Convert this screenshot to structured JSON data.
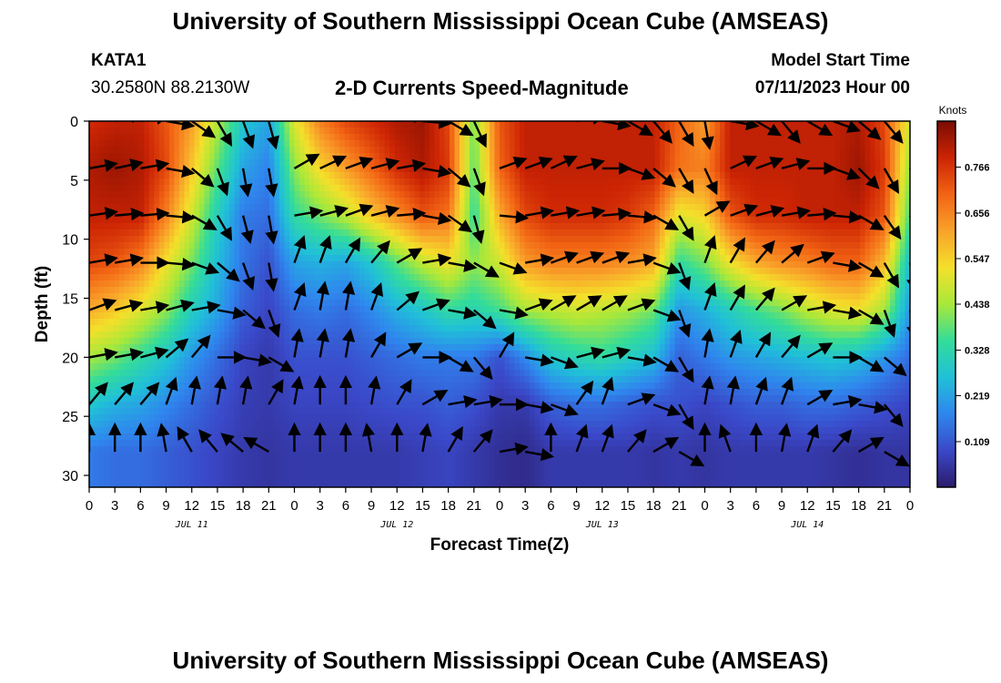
{
  "header": {
    "title": "University of Southern Mississippi Ocean Cube (AMSEAS)",
    "station_id": "KATA1",
    "station_coords": "30.2580N  88.2130W",
    "chart_title": "2-D Currents Speed-Magnitude",
    "model_start_label": "Model Start Time",
    "model_start_value": "07/11/2023 Hour 00"
  },
  "footer": {
    "title": "University of Southern Mississippi Ocean Cube (AMSEAS)"
  },
  "chart_data": {
    "type": "heatmap",
    "xlabel": "Forecast Time(Z)",
    "ylabel": "Depth (ft)",
    "x_tick_labels": [
      "0",
      "3",
      "6",
      "9",
      "12",
      "15",
      "18",
      "21",
      "0",
      "3",
      "6",
      "9",
      "12",
      "15",
      "18",
      "21",
      "0",
      "3",
      "6",
      "9",
      "12",
      "15",
      "18",
      "21",
      "0",
      "3",
      "6",
      "9",
      "12",
      "15",
      "18",
      "21",
      "0"
    ],
    "day_labels": [
      {
        "label": "JUL 11",
        "hour": 12
      },
      {
        "label": "JUL 12",
        "hour": 36
      },
      {
        "label": "JUL 13",
        "hour": 60
      },
      {
        "label": "JUL 14",
        "hour": 84
      }
    ],
    "y_ticks": [
      0,
      5,
      10,
      15,
      20,
      25,
      30
    ],
    "xlim": [
      0,
      96
    ],
    "ylim": [
      31,
      0
    ],
    "colorbar": {
      "units": "Knots",
      "ticks": [
        "0.109",
        "0.219",
        "0.328",
        "0.438",
        "0.547",
        "0.656",
        "0.766"
      ],
      "tick_values": [
        0.109,
        0.219,
        0.328,
        0.438,
        0.547,
        0.656,
        0.766
      ],
      "range": [
        0,
        0.876
      ],
      "colors": [
        "#2b1b6b",
        "#3a48c8",
        "#2f86ee",
        "#20c0d8",
        "#33dc9a",
        "#a8e83a",
        "#f4e02a",
        "#f9a22a",
        "#f26414",
        "#cc2404",
        "#7a0c02"
      ]
    },
    "depths": [
      0,
      4,
      8,
      12,
      16,
      20,
      24,
      28
    ],
    "times": [
      0,
      3,
      6,
      9,
      12,
      15,
      18,
      21,
      24,
      27,
      30,
      33,
      36,
      39,
      42,
      45,
      48,
      51,
      54,
      57,
      60,
      63,
      66,
      69,
      72,
      75,
      78,
      81,
      84,
      87,
      90,
      93,
      96
    ],
    "speed": [
      [
        0.78,
        0.8,
        0.8,
        0.72,
        0.62,
        0.45,
        0.28,
        0.22,
        0.5,
        0.66,
        0.74,
        0.78,
        0.82,
        0.84,
        0.74,
        0.4,
        0.72,
        0.8,
        0.8,
        0.8,
        0.8,
        0.8,
        0.8,
        0.7,
        0.62,
        0.8,
        0.8,
        0.8,
        0.8,
        0.8,
        0.82,
        0.74,
        0.48
      ],
      [
        0.82,
        0.84,
        0.82,
        0.74,
        0.56,
        0.38,
        0.22,
        0.17,
        0.42,
        0.54,
        0.62,
        0.7,
        0.78,
        0.82,
        0.76,
        0.38,
        0.7,
        0.8,
        0.8,
        0.8,
        0.8,
        0.8,
        0.8,
        0.68,
        0.66,
        0.8,
        0.8,
        0.8,
        0.8,
        0.8,
        0.84,
        0.76,
        0.42
      ],
      [
        0.8,
        0.8,
        0.8,
        0.66,
        0.48,
        0.3,
        0.16,
        0.14,
        0.34,
        0.4,
        0.46,
        0.56,
        0.64,
        0.72,
        0.68,
        0.34,
        0.6,
        0.74,
        0.78,
        0.78,
        0.78,
        0.76,
        0.7,
        0.5,
        0.54,
        0.72,
        0.78,
        0.78,
        0.8,
        0.8,
        0.8,
        0.72,
        0.36
      ],
      [
        0.74,
        0.72,
        0.66,
        0.52,
        0.4,
        0.26,
        0.15,
        0.1,
        0.22,
        0.24,
        0.22,
        0.28,
        0.38,
        0.46,
        0.52,
        0.42,
        0.48,
        0.62,
        0.66,
        0.66,
        0.66,
        0.64,
        0.6,
        0.34,
        0.4,
        0.52,
        0.6,
        0.64,
        0.66,
        0.7,
        0.7,
        0.58,
        0.26
      ],
      [
        0.6,
        0.56,
        0.5,
        0.42,
        0.3,
        0.22,
        0.12,
        0.08,
        0.14,
        0.16,
        0.14,
        0.18,
        0.24,
        0.28,
        0.34,
        0.32,
        0.36,
        0.44,
        0.46,
        0.48,
        0.46,
        0.44,
        0.4,
        0.2,
        0.24,
        0.3,
        0.36,
        0.4,
        0.46,
        0.5,
        0.52,
        0.44,
        0.2
      ],
      [
        0.44,
        0.4,
        0.34,
        0.28,
        0.2,
        0.14,
        0.08,
        0.06,
        0.1,
        0.1,
        0.1,
        0.12,
        0.14,
        0.16,
        0.16,
        0.16,
        0.1,
        0.18,
        0.28,
        0.32,
        0.34,
        0.3,
        0.26,
        0.12,
        0.16,
        0.2,
        0.22,
        0.24,
        0.26,
        0.28,
        0.26,
        0.2,
        0.14
      ],
      [
        0.28,
        0.24,
        0.22,
        0.18,
        0.14,
        0.1,
        0.07,
        0.06,
        0.08,
        0.08,
        0.08,
        0.09,
        0.1,
        0.1,
        0.12,
        0.1,
        0.06,
        0.06,
        0.12,
        0.14,
        0.14,
        0.12,
        0.1,
        0.1,
        0.08,
        0.1,
        0.12,
        0.12,
        0.14,
        0.14,
        0.12,
        0.1,
        0.08
      ],
      [
        0.16,
        0.14,
        0.14,
        0.12,
        0.1,
        0.08,
        0.06,
        0.05,
        0.06,
        0.06,
        0.06,
        0.06,
        0.06,
        0.07,
        0.08,
        0.06,
        0.04,
        0.03,
        0.06,
        0.06,
        0.06,
        0.06,
        0.05,
        0.06,
        0.05,
        0.06,
        0.06,
        0.06,
        0.06,
        0.05,
        0.04,
        0.05,
        0.05
      ]
    ],
    "direction_deg": [
      [
        70,
        75,
        80,
        100,
        125,
        150,
        160,
        165,
        0,
        20,
        40,
        60,
        75,
        95,
        120,
        155,
        0,
        30,
        60,
        80,
        100,
        120,
        140,
        150,
        170,
        100,
        120,
        140,
        120,
        110,
        130,
        140,
        150
      ],
      [
        80,
        78,
        80,
        100,
        130,
        160,
        170,
        170,
        60,
        65,
        70,
        75,
        80,
        100,
        130,
        160,
        70,
        70,
        65,
        75,
        90,
        110,
        130,
        150,
        155,
        65,
        70,
        75,
        90,
        110,
        135,
        150,
        160
      ],
      [
        82,
        85,
        85,
        95,
        120,
        150,
        165,
        170,
        80,
        75,
        70,
        75,
        85,
        100,
        125,
        165,
        95,
        80,
        80,
        80,
        85,
        95,
        120,
        150,
        60,
        70,
        75,
        80,
        85,
        95,
        120,
        145,
        160
      ],
      [
        80,
        80,
        90,
        95,
        110,
        130,
        160,
        170,
        20,
        20,
        30,
        40,
        60,
        80,
        100,
        120,
        110,
        80,
        70,
        70,
        70,
        80,
        110,
        160,
        20,
        30,
        40,
        50,
        70,
        100,
        120,
        150,
        170
      ],
      [
        70,
        75,
        80,
        75,
        80,
        100,
        130,
        160,
        20,
        10,
        10,
        20,
        50,
        70,
        100,
        130,
        100,
        70,
        60,
        60,
        60,
        70,
        110,
        160,
        20,
        30,
        40,
        60,
        80,
        100,
        120,
        160,
        170
      ],
      [
        80,
        80,
        75,
        50,
        40,
        90,
        100,
        120,
        10,
        10,
        10,
        30,
        60,
        90,
        120,
        140,
        30,
        100,
        110,
        75,
        75,
        100,
        120,
        150,
        10,
        20,
        30,
        40,
        60,
        90,
        120,
        130,
        110
      ],
      [
        40,
        40,
        40,
        20,
        10,
        10,
        10,
        30,
        10,
        0,
        0,
        10,
        30,
        60,
        80,
        80,
        90,
        100,
        110,
        35,
        20,
        70,
        110,
        150,
        10,
        10,
        20,
        20,
        60,
        80,
        100,
        140,
        150
      ],
      [
        0,
        0,
        0,
        -10,
        -30,
        -40,
        -50,
        -60,
        0,
        0,
        0,
        -10,
        0,
        10,
        30,
        40,
        80,
        100,
        0,
        20,
        20,
        40,
        60,
        120,
        0,
        -20,
        0,
        10,
        20,
        40,
        60,
        120,
        140
      ]
    ]
  }
}
